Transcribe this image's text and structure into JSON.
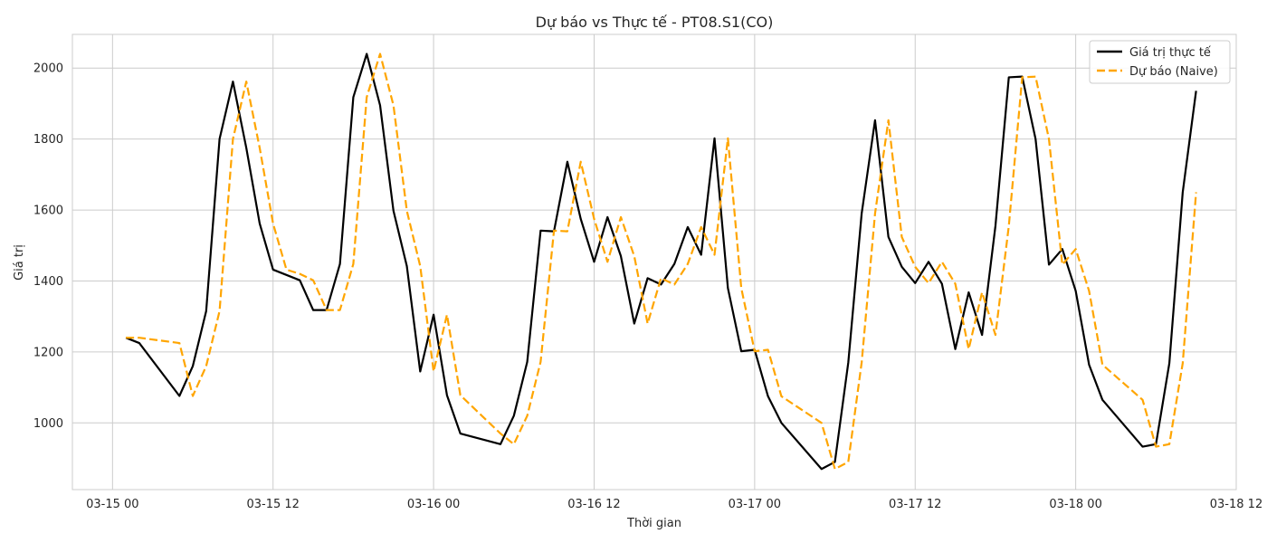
{
  "chart_data": {
    "type": "line",
    "title": "Dự báo vs Thực tế - PT08.S1(CO)",
    "xlabel": "Thời gian",
    "ylabel": "Giá trị",
    "grid": true,
    "legend_position": "top-right",
    "x_tick_labels": [
      "03-15 00",
      "03-15 12",
      "03-16 00",
      "03-16 12",
      "03-17 00",
      "03-17 12",
      "03-18 00",
      "03-18 12"
    ],
    "x_ticks": [
      "2004-03-15T00:00",
      "2004-03-15T12:00",
      "2004-03-16T00:00",
      "2004-03-16T12:00",
      "2004-03-17T00:00",
      "2004-03-17T12:00",
      "2004-03-18T00:00",
      "2004-03-18T12:00"
    ],
    "y_ticks": [
      1000,
      1200,
      1400,
      1600,
      1800,
      2000
    ],
    "xlim": [
      "2004-03-14T21:00",
      "2004-03-18T12:00"
    ],
    "ylim": [
      812,
      2095
    ],
    "colors": {
      "actual": "#000000",
      "forecast": "#ffa500"
    },
    "series": [
      {
        "name": "Giá trị thực tế",
        "style": "solid",
        "points": [
          [
            "2004-03-15T01:00",
            1240
          ],
          [
            "2004-03-15T02:00",
            1225
          ],
          [
            "2004-03-15T05:00",
            1076
          ],
          [
            "2004-03-15T06:00",
            1160
          ],
          [
            "2004-03-15T07:00",
            1315
          ],
          [
            "2004-03-15T08:00",
            1800
          ],
          [
            "2004-03-15T09:00",
            1962
          ],
          [
            "2004-03-15T10:00",
            1775
          ],
          [
            "2004-03-15T11:00",
            1562
          ],
          [
            "2004-03-15T12:00",
            1432
          ],
          [
            "2004-03-15T14:00",
            1402
          ],
          [
            "2004-03-15T15:00",
            1318
          ],
          [
            "2004-03-15T16:00",
            1318
          ],
          [
            "2004-03-15T17:00",
            1448
          ],
          [
            "2004-03-15T18:00",
            1918
          ],
          [
            "2004-03-15T19:00",
            2040
          ],
          [
            "2004-03-15T20:00",
            1895
          ],
          [
            "2004-03-15T21:00",
            1598
          ],
          [
            "2004-03-15T22:00",
            1442
          ],
          [
            "2004-03-15T23:00",
            1145
          ],
          [
            "2004-03-16T00:00",
            1305
          ],
          [
            "2004-03-16T01:00",
            1078
          ],
          [
            "2004-03-16T02:00",
            970
          ],
          [
            "2004-03-16T05:00",
            940
          ],
          [
            "2004-03-16T06:00",
            1020
          ],
          [
            "2004-03-16T07:00",
            1172
          ],
          [
            "2004-03-16T08:00",
            1542
          ],
          [
            "2004-03-16T09:00",
            1540
          ],
          [
            "2004-03-16T10:00",
            1736
          ],
          [
            "2004-03-16T11:00",
            1575
          ],
          [
            "2004-03-16T12:00",
            1454
          ],
          [
            "2004-03-16T13:00",
            1580
          ],
          [
            "2004-03-16T14:00",
            1470
          ],
          [
            "2004-03-16T15:00",
            1280
          ],
          [
            "2004-03-16T16:00",
            1408
          ],
          [
            "2004-03-16T17:00",
            1390
          ],
          [
            "2004-03-16T18:00",
            1448
          ],
          [
            "2004-03-16T19:00",
            1552
          ],
          [
            "2004-03-16T20:00",
            1474
          ],
          [
            "2004-03-16T21:00",
            1802
          ],
          [
            "2004-03-16T22:00",
            1380
          ],
          [
            "2004-03-16T23:00",
            1202
          ],
          [
            "2004-03-17T00:00",
            1206
          ],
          [
            "2004-03-17T01:00",
            1075
          ],
          [
            "2004-03-17T02:00",
            1000
          ],
          [
            "2004-03-17T05:00",
            870
          ],
          [
            "2004-03-17T06:00",
            890
          ],
          [
            "2004-03-17T07:00",
            1170
          ],
          [
            "2004-03-17T08:00",
            1590
          ],
          [
            "2004-03-17T09:00",
            1853
          ],
          [
            "2004-03-17T10:00",
            1524
          ],
          [
            "2004-03-17T11:00",
            1440
          ],
          [
            "2004-03-17T12:00",
            1394
          ],
          [
            "2004-03-17T13:00",
            1454
          ],
          [
            "2004-03-17T14:00",
            1392
          ],
          [
            "2004-03-17T15:00",
            1208
          ],
          [
            "2004-03-17T16:00",
            1368
          ],
          [
            "2004-03-17T17:00",
            1248
          ],
          [
            "2004-03-17T18:00",
            1555
          ],
          [
            "2004-03-17T19:00",
            1974
          ],
          [
            "2004-03-17T20:00",
            1976
          ],
          [
            "2004-03-17T21:00",
            1800
          ],
          [
            "2004-03-17T22:00",
            1446
          ],
          [
            "2004-03-17T23:00",
            1490
          ],
          [
            "2004-03-18T00:00",
            1372
          ],
          [
            "2004-03-18T01:00",
            1164
          ],
          [
            "2004-03-18T02:00",
            1065
          ],
          [
            "2004-03-18T05:00",
            933
          ],
          [
            "2004-03-18T06:00",
            940
          ],
          [
            "2004-03-18T07:00",
            1168
          ],
          [
            "2004-03-18T08:00",
            1650
          ],
          [
            "2004-03-18T09:00",
            1936
          ]
        ]
      },
      {
        "name": "Dự báo (Naive)",
        "style": "dashed",
        "points": [
          [
            "2004-03-15T01:00",
            1240
          ],
          [
            "2004-03-15T02:00",
            1240
          ],
          [
            "2004-03-15T05:00",
            1225
          ],
          [
            "2004-03-15T06:00",
            1076
          ],
          [
            "2004-03-15T07:00",
            1160
          ],
          [
            "2004-03-15T08:00",
            1315
          ],
          [
            "2004-03-15T09:00",
            1800
          ],
          [
            "2004-03-15T10:00",
            1962
          ],
          [
            "2004-03-15T11:00",
            1775
          ],
          [
            "2004-03-15T12:00",
            1562
          ],
          [
            "2004-03-15T13:00",
            1432
          ],
          [
            "2004-03-15T14:00",
            1420
          ],
          [
            "2004-03-15T15:00",
            1402
          ],
          [
            "2004-03-15T16:00",
            1318
          ],
          [
            "2004-03-15T17:00",
            1318
          ],
          [
            "2004-03-15T18:00",
            1448
          ],
          [
            "2004-03-15T19:00",
            1918
          ],
          [
            "2004-03-15T20:00",
            2040
          ],
          [
            "2004-03-15T21:00",
            1895
          ],
          [
            "2004-03-15T22:00",
            1598
          ],
          [
            "2004-03-15T23:00",
            1442
          ],
          [
            "2004-03-16T00:00",
            1145
          ],
          [
            "2004-03-16T01:00",
            1305
          ],
          [
            "2004-03-16T02:00",
            1078
          ],
          [
            "2004-03-16T05:00",
            970
          ],
          [
            "2004-03-16T06:00",
            940
          ],
          [
            "2004-03-16T07:00",
            1020
          ],
          [
            "2004-03-16T08:00",
            1172
          ],
          [
            "2004-03-16T09:00",
            1542
          ],
          [
            "2004-03-16T10:00",
            1540
          ],
          [
            "2004-03-16T11:00",
            1736
          ],
          [
            "2004-03-16T12:00",
            1575
          ],
          [
            "2004-03-16T13:00",
            1454
          ],
          [
            "2004-03-16T14:00",
            1580
          ],
          [
            "2004-03-16T15:00",
            1470
          ],
          [
            "2004-03-16T16:00",
            1280
          ],
          [
            "2004-03-16T17:00",
            1408
          ],
          [
            "2004-03-16T18:00",
            1390
          ],
          [
            "2004-03-16T19:00",
            1448
          ],
          [
            "2004-03-16T20:00",
            1552
          ],
          [
            "2004-03-16T21:00",
            1474
          ],
          [
            "2004-03-16T22:00",
            1802
          ],
          [
            "2004-03-16T23:00",
            1380
          ],
          [
            "2004-03-17T00:00",
            1202
          ],
          [
            "2004-03-17T01:00",
            1206
          ],
          [
            "2004-03-17T02:00",
            1075
          ],
          [
            "2004-03-17T05:00",
            1000
          ],
          [
            "2004-03-17T06:00",
            870
          ],
          [
            "2004-03-17T07:00",
            890
          ],
          [
            "2004-03-17T08:00",
            1170
          ],
          [
            "2004-03-17T09:00",
            1590
          ],
          [
            "2004-03-17T10:00",
            1853
          ],
          [
            "2004-03-17T11:00",
            1524
          ],
          [
            "2004-03-17T12:00",
            1440
          ],
          [
            "2004-03-17T13:00",
            1394
          ],
          [
            "2004-03-17T14:00",
            1454
          ],
          [
            "2004-03-17T15:00",
            1392
          ],
          [
            "2004-03-17T16:00",
            1208
          ],
          [
            "2004-03-17T17:00",
            1368
          ],
          [
            "2004-03-17T18:00",
            1248
          ],
          [
            "2004-03-17T19:00",
            1555
          ],
          [
            "2004-03-17T20:00",
            1974
          ],
          [
            "2004-03-17T21:00",
            1976
          ],
          [
            "2004-03-17T22:00",
            1800
          ],
          [
            "2004-03-17T23:00",
            1446
          ],
          [
            "2004-03-18T00:00",
            1490
          ],
          [
            "2004-03-18T01:00",
            1372
          ],
          [
            "2004-03-18T02:00",
            1164
          ],
          [
            "2004-03-18T05:00",
            1065
          ],
          [
            "2004-03-18T06:00",
            933
          ],
          [
            "2004-03-18T07:00",
            940
          ],
          [
            "2004-03-18T08:00",
            1168
          ],
          [
            "2004-03-18T09:00",
            1650
          ]
        ]
      }
    ]
  }
}
